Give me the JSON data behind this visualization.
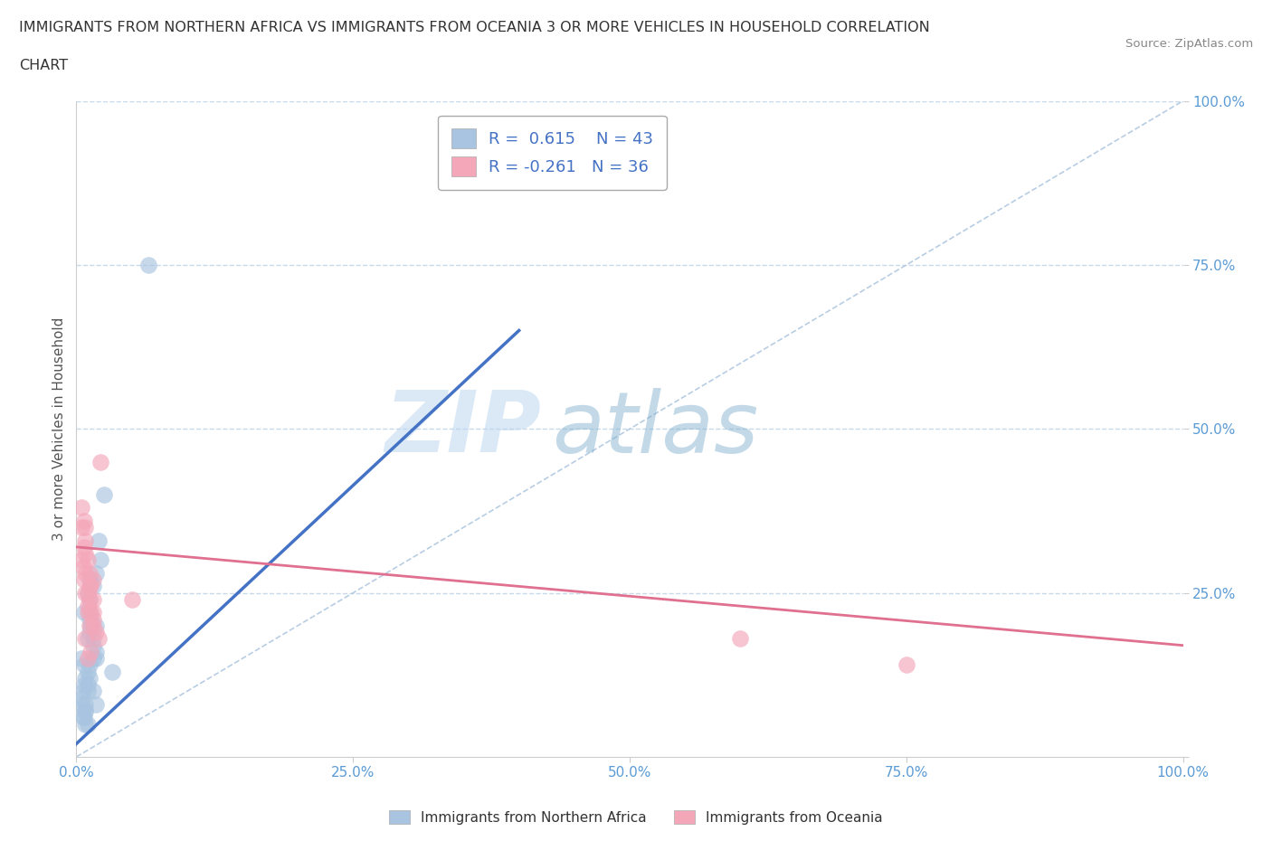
{
  "title_line1": "IMMIGRANTS FROM NORTHERN AFRICA VS IMMIGRANTS FROM OCEANIA 3 OR MORE VEHICLES IN HOUSEHOLD CORRELATION",
  "title_line2": "CHART",
  "source": "Source: ZipAtlas.com",
  "ylabel": "3 or more Vehicles in Household",
  "watermark_zip": "ZIP",
  "watermark_atlas": "atlas",
  "xlim": [
    0,
    100
  ],
  "ylim": [
    0,
    100
  ],
  "xticks": [
    0,
    25,
    50,
    75,
    100
  ],
  "yticks": [
    0,
    25,
    50,
    75,
    100
  ],
  "xticklabels": [
    "0.0%",
    "25.0%",
    "50.0%",
    "75.0%",
    "100.0%"
  ],
  "yticklabels": [
    "",
    "25.0%",
    "50.0%",
    "75.0%",
    "100.0%"
  ],
  "blue_R": 0.615,
  "blue_N": 43,
  "pink_R": -0.261,
  "pink_N": 36,
  "blue_color": "#a8c4e0",
  "pink_color": "#f4a7b9",
  "blue_line_color": "#4472c4",
  "pink_line_color": "#e07090",
  "ref_line_color": "#b0c8e0",
  "background_color": "#ffffff",
  "grid_color": "#c8daea",
  "legend_label_blue": "Immigrants from Northern Africa",
  "legend_label_pink": "Immigrants from Oceania",
  "blue_scatter_x": [
    1.0,
    1.8,
    1.5,
    0.5,
    1.2,
    1.8,
    3.2,
    1.0,
    0.7,
    1.0,
    1.2,
    1.8,
    2.2,
    0.8,
    0.6,
    1.2,
    1.5,
    1.8,
    0.7,
    1.2,
    2.0,
    0.8,
    1.5,
    2.5,
    0.6,
    1.0,
    0.5,
    0.8,
    1.2,
    1.5,
    1.2,
    0.7,
    1.0,
    1.5,
    0.8,
    0.5,
    1.3,
    1.8,
    1.0,
    0.7,
    6.5,
    1.2,
    0.8
  ],
  "blue_scatter_y": [
    5,
    8,
    10,
    15,
    12,
    20,
    13,
    18,
    22,
    25,
    14,
    16,
    30,
    7,
    10,
    24,
    26,
    28,
    11,
    19,
    33,
    8,
    15,
    40,
    6,
    13,
    9,
    12,
    22,
    17,
    27,
    14,
    11,
    18,
    5,
    8,
    20,
    15,
    10,
    6,
    75,
    21,
    7
  ],
  "pink_scatter_x": [
    0.5,
    1.0,
    0.8,
    1.5,
    1.2,
    2.2,
    0.7,
    1.2,
    1.5,
    0.8,
    2.0,
    1.0,
    1.3,
    0.5,
    0.8,
    5.0,
    1.5,
    0.7,
    1.2,
    1.0,
    1.5,
    0.8,
    1.8,
    1.3,
    60,
    75,
    0.6,
    1.0,
    0.8,
    1.3,
    0.5,
    1.5,
    1.2,
    0.7,
    1.0,
    0.8
  ],
  "pink_scatter_y": [
    30,
    25,
    35,
    22,
    28,
    45,
    32,
    26,
    20,
    33,
    18,
    15,
    22,
    38,
    28,
    24,
    27,
    36,
    24,
    30,
    21,
    25,
    19,
    16,
    18,
    14,
    29,
    23,
    31,
    26,
    35,
    24,
    20,
    27,
    22,
    18
  ],
  "blue_trend_x": [
    0,
    40
  ],
  "blue_trend_y": [
    2,
    65
  ],
  "pink_trend_x": [
    0,
    100
  ],
  "pink_trend_y": [
    32,
    17
  ]
}
